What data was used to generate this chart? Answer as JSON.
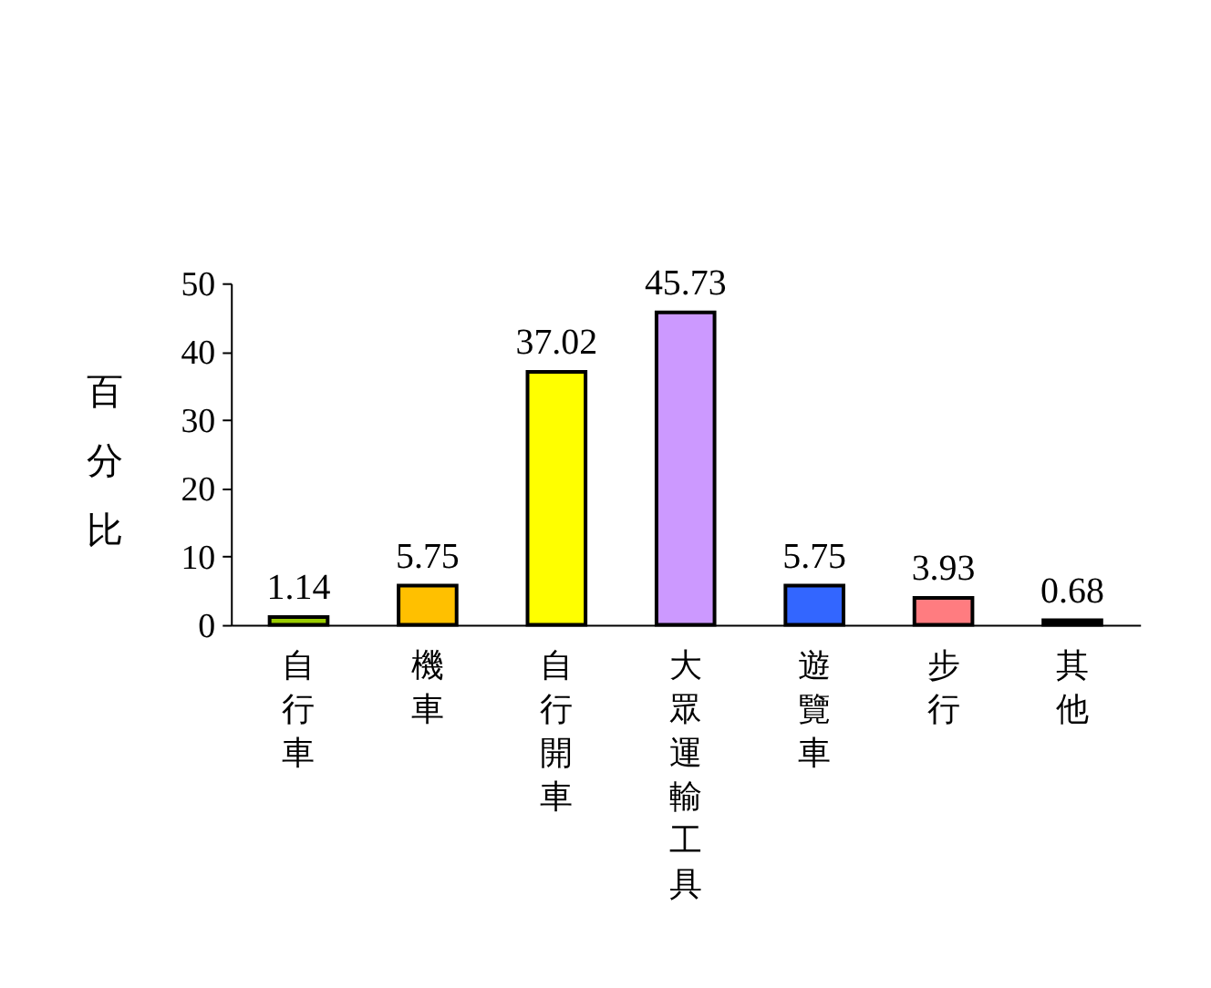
{
  "chart_data": {
    "type": "bar",
    "ylabel": "百分比",
    "categories": [
      "自行車",
      "機車",
      "自行開車",
      "大眾運輸工具",
      "遊覽車",
      "步行",
      "其他"
    ],
    "values": [
      1.14,
      5.75,
      37.02,
      45.73,
      5.75,
      3.93,
      0.68
    ],
    "colors": [
      "#99cc00",
      "#ffc000",
      "#ffff00",
      "#cc99ff",
      "#3366ff",
      "#ff7c80",
      "#000000"
    ],
    "ylim": [
      0,
      50
    ],
    "yticks": [
      0,
      10,
      20,
      30,
      40,
      50
    ],
    "grid": false,
    "data_labels": true
  }
}
